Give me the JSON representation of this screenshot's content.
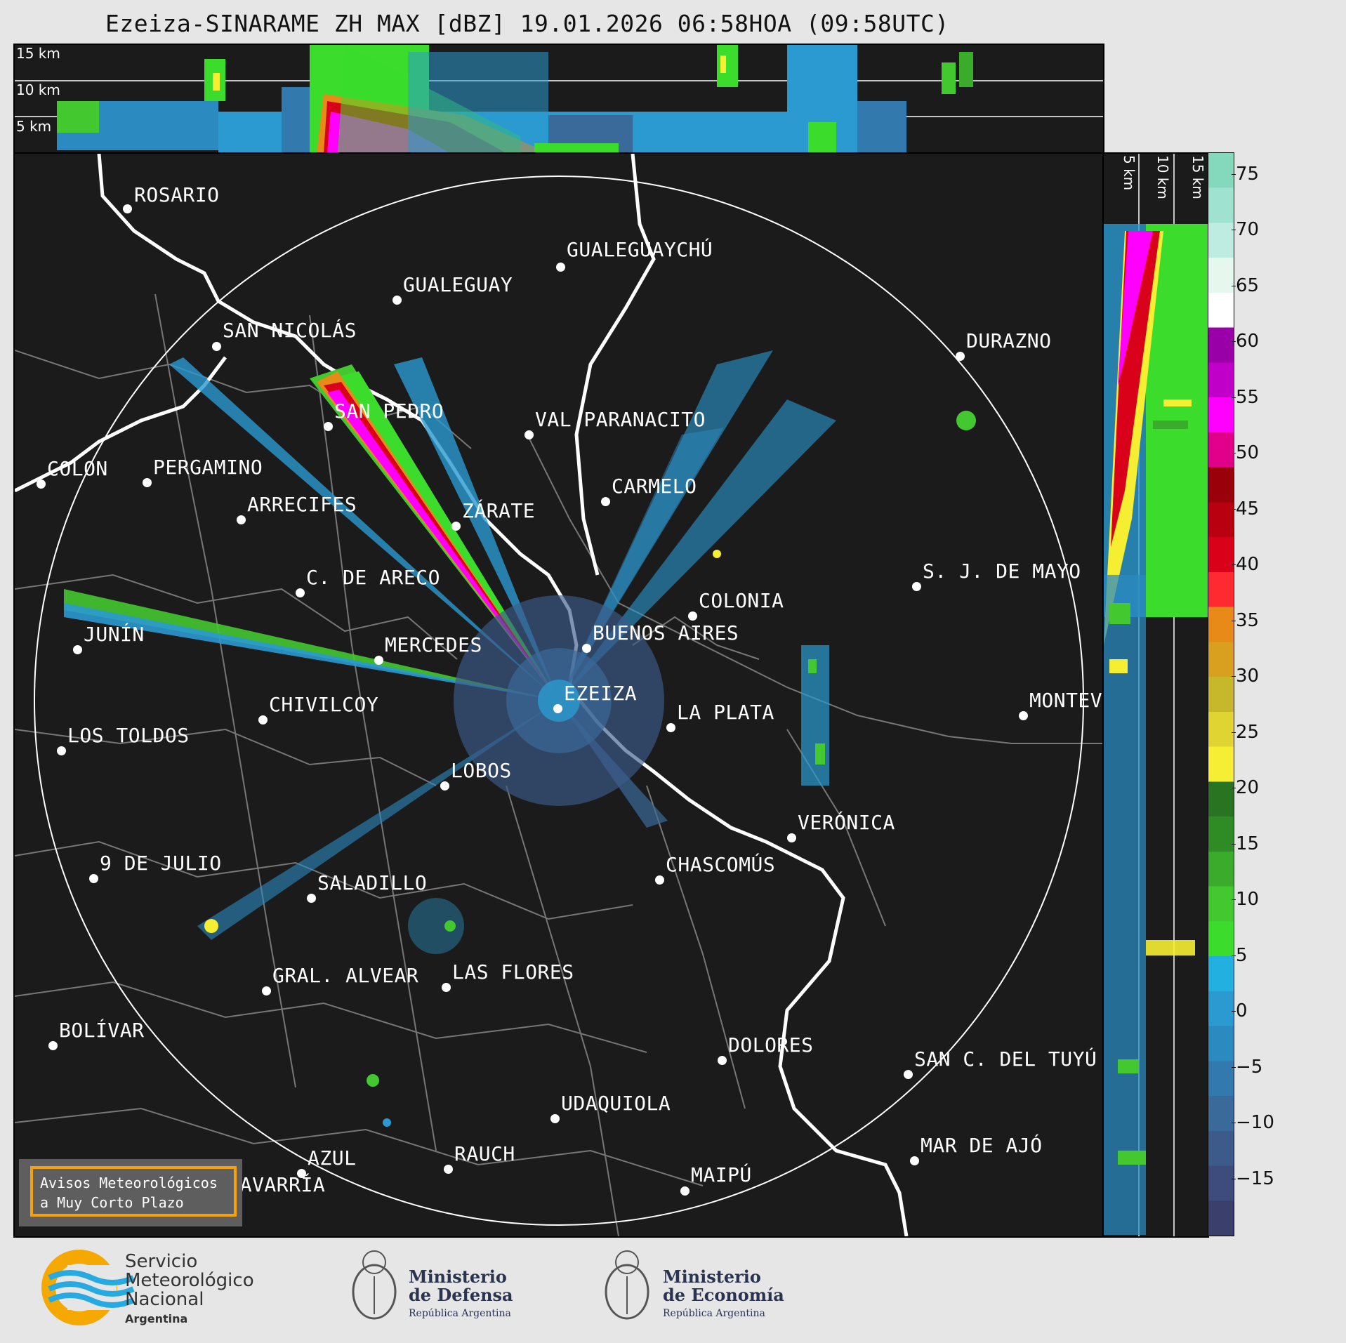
{
  "title": "Ezeiza-SINARAME ZH MAX [dBZ] 19.01.2026 06:58HOA (09:58UTC)",
  "top_panel": {
    "altitude_labels": [
      "15 km",
      "10 km",
      "5 km"
    ]
  },
  "side_panel": {
    "altitude_labels": [
      "5 km",
      "10 km",
      "15 km"
    ]
  },
  "colorbar": {
    "unit": "dBZ",
    "ticks": [
      "75",
      "70",
      "65",
      "60",
      "55",
      "50",
      "45",
      "40",
      "35",
      "30",
      "25",
      "20",
      "15",
      "10",
      "5",
      "0",
      "−5",
      "−10",
      "−15"
    ],
    "range": [
      -20,
      77
    ],
    "colors": [
      "#3b3f6b",
      "#3d4c7c",
      "#3c5a8a",
      "#3a6a99",
      "#3279ad",
      "#2b8ac0",
      "#2a9ad0",
      "#22b0e0",
      "#3bdc2c",
      "#44c830",
      "#3aab2a",
      "#2f8c24",
      "#287420",
      "#f5ee33",
      "#e0d432",
      "#c6b82a",
      "#d9a020",
      "#e88a18",
      "#ff2a30",
      "#d9001a",
      "#b80010",
      "#9a000a",
      "#e0008a",
      "#ff00ff",
      "#c000c8",
      "#9a00a8",
      "#ffffff",
      "#e6f7ee",
      "#bfece0",
      "#9fe2cf",
      "#84d9bd"
    ]
  },
  "cities": [
    {
      "name": "ROSARIO"
    },
    {
      "name": "GUALEGUAYCHÚ"
    },
    {
      "name": "GUALEGUAY"
    },
    {
      "name": "SAN NICOLÁS"
    },
    {
      "name": "DURAZNO"
    },
    {
      "name": "SAN PEDRO"
    },
    {
      "name": "VAL PARANACITO"
    },
    {
      "name": "COLON"
    },
    {
      "name": "PERGAMINO"
    },
    {
      "name": "CARMELO"
    },
    {
      "name": "ARRECIFES"
    },
    {
      "name": "ZÁRATE"
    },
    {
      "name": "S. J. DE MAYO"
    },
    {
      "name": "C. DE ARECO"
    },
    {
      "name": "COLONIA"
    },
    {
      "name": "JUNÍN"
    },
    {
      "name": "BUENOS AIRES"
    },
    {
      "name": "MERCEDES"
    },
    {
      "name": "EZEIZA"
    },
    {
      "name": "MONTEV"
    },
    {
      "name": "CHIVILCOY"
    },
    {
      "name": "LA PLATA"
    },
    {
      "name": "LOS TOLDOS"
    },
    {
      "name": "LOBOS"
    },
    {
      "name": "VERÓNICA"
    },
    {
      "name": "9 DE JULIO"
    },
    {
      "name": "CHASCOMÚS"
    },
    {
      "name": "SALADILLO"
    },
    {
      "name": "GRAL. ALVEAR"
    },
    {
      "name": "LAS FLORES"
    },
    {
      "name": "BOLÍVAR"
    },
    {
      "name": "DOLORES"
    },
    {
      "name": "SAN C. DEL TUYÚ"
    },
    {
      "name": "UDAQUIOLA"
    },
    {
      "name": "MAR DE AJÓ"
    },
    {
      "name": "RAUCH"
    },
    {
      "name": "AZUL"
    },
    {
      "name": "OLAVARRÍA"
    },
    {
      "name": "MAIPÚ"
    }
  ],
  "warning_box": {
    "line1": "Avisos Meteorológicos",
    "line2": "a Muy Corto Plazo"
  },
  "logos": {
    "smn": {
      "line1": "Servicio",
      "line2": "Meteorológico",
      "line3": "Nacional",
      "line4": "Argentina"
    },
    "defensa": {
      "line1": "Ministerio",
      "line2": "de Defensa",
      "line3": "República Argentina"
    },
    "economia": {
      "line1": "Ministerio",
      "line2": "de Economía",
      "line3": "República Argentina"
    }
  }
}
